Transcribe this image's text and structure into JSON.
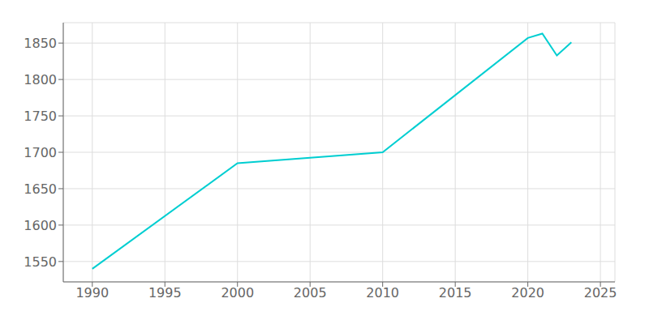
{
  "chart_data": {
    "type": "line",
    "x": [
      1990,
      2000,
      2010,
      2020,
      2021,
      2022,
      2023
    ],
    "values": [
      1540,
      1685,
      1700,
      1857,
      1863,
      1833,
      1851
    ],
    "color": "#00CED1",
    "xlim": [
      1988,
      2026
    ],
    "ylim": [
      1522,
      1878
    ],
    "xticks": [
      1990,
      1995,
      2000,
      2005,
      2010,
      2015,
      2020,
      2025
    ],
    "yticks": [
      1550,
      1600,
      1650,
      1700,
      1750,
      1800,
      1850
    ],
    "grid": true
  }
}
